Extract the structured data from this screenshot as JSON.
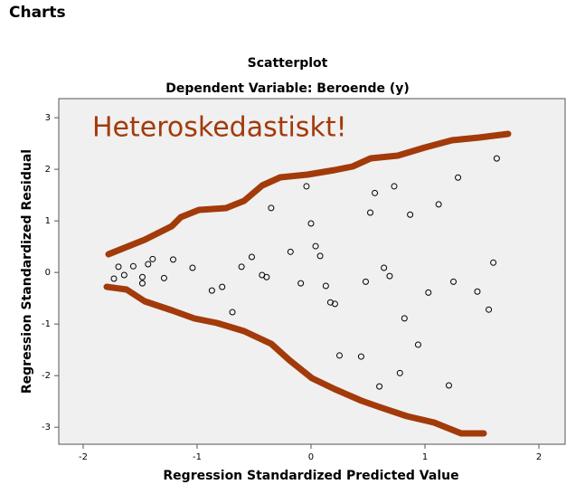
{
  "header": {
    "title": "Charts"
  },
  "chart_data": {
    "type": "scatter",
    "title": "Scatterplot",
    "subtitle": "Dependent Variable: Beroende (y)",
    "x_label": "Regression Standardized Predicted Value",
    "y_label": "Regression Standardized Residual",
    "annotation": "Heteroskedastiskt!",
    "x": [
      -1.73,
      -1.69,
      -1.64,
      -1.56,
      -1.48,
      -1.48,
      -1.43,
      -1.39,
      -1.29,
      -1.21,
      -1.04,
      -0.87,
      -0.78,
      -0.69,
      -0.61,
      -0.52,
      -0.43,
      -0.39,
      -0.35,
      -0.18,
      -0.09,
      -0.04,
      0,
      0.04,
      0.08,
      0.13,
      0.17,
      0.21,
      0.25,
      0.44,
      0.48,
      0.52,
      0.56,
      0.6,
      0.64,
      0.69,
      0.73,
      0.78,
      0.82,
      0.87,
      0.94,
      1.03,
      1.12,
      1.21,
      1.25,
      1.29,
      1.46,
      1.56,
      1.6,
      1.63
    ],
    "series": [
      {
        "name": "Residual",
        "color": "#000000",
        "values": [
          -0.12,
          0.11,
          -0.05,
          0.12,
          -0.09,
          -0.21,
          0.16,
          0.26,
          -0.11,
          0.25,
          0.09,
          -0.35,
          -0.28,
          -0.77,
          0.11,
          0.3,
          -0.05,
          -0.09,
          1.25,
          0.4,
          -0.21,
          1.67,
          0.95,
          0.51,
          0.32,
          -0.26,
          -0.58,
          -0.61,
          -1.61,
          -1.63,
          -0.18,
          1.16,
          1.54,
          -2.21,
          0.09,
          -0.07,
          1.67,
          -1.95,
          -0.89,
          1.12,
          -1.4,
          -0.39,
          1.32,
          -2.19,
          -0.18,
          1.84,
          -0.37,
          -0.72,
          0.19,
          2.21
        ]
      }
    ],
    "xlim": [
      -2.214,
      2.23
    ],
    "ylim": [
      -3.33,
      3.37
    ],
    "xticks": [
      -2,
      -1,
      0,
      1,
      2
    ],
    "yticks": [
      -3,
      -2,
      -1,
      0,
      1,
      2,
      3
    ],
    "grid": false
  }
}
